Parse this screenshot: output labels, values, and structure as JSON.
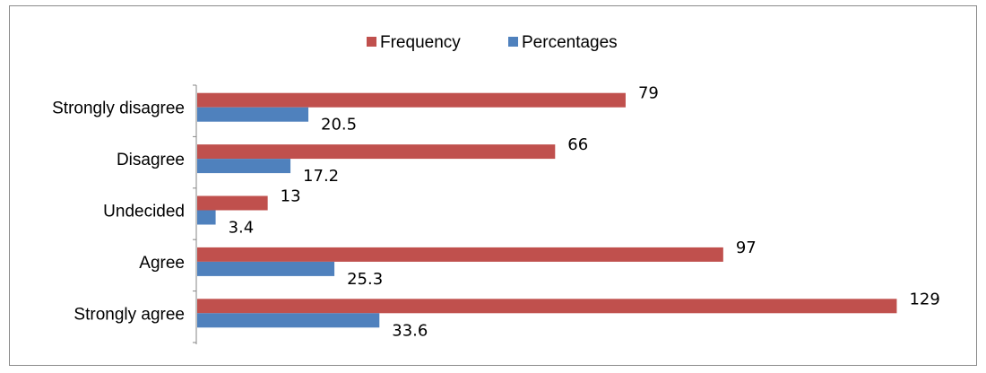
{
  "chart_data": {
    "type": "bar",
    "orientation": "horizontal",
    "categories": [
      "Strongly disagree",
      "Disagree",
      "Undecided",
      "Agree",
      "Strongly agree"
    ],
    "series": [
      {
        "name": "Frequency",
        "color": "#c0504d",
        "values": [
          79,
          66,
          13,
          97,
          129
        ]
      },
      {
        "name": "Percentages",
        "color": "#4f81bd",
        "values": [
          20.5,
          17.2,
          3.4,
          25.3,
          33.6
        ]
      }
    ],
    "xlim": [
      0,
      155
    ],
    "legend_position": "top",
    "grid": false,
    "data_labels": true
  }
}
